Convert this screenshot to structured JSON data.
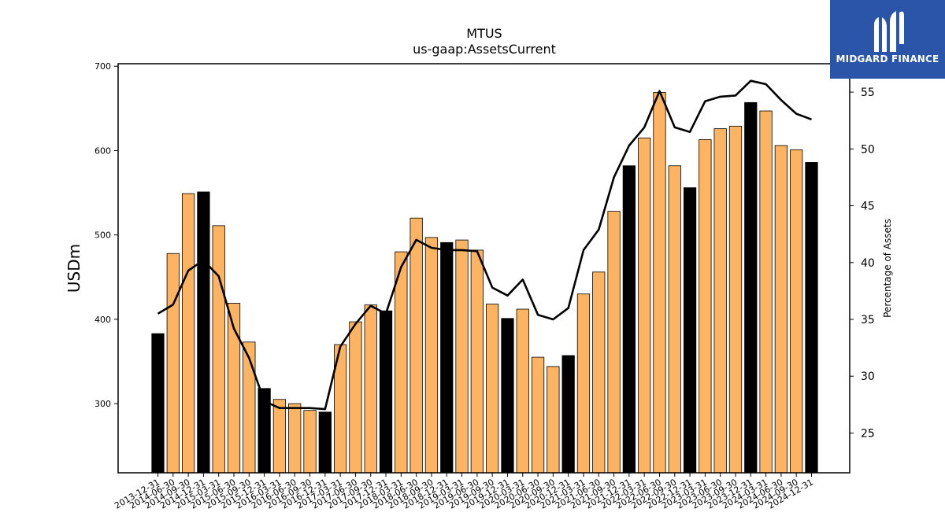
{
  "chart_data": {
    "type": "bar",
    "title": "MTUS",
    "subtitle": "us-gaap:AssetsCurrent",
    "ylabel": "USDm",
    "y2label": "Percentage of Assets",
    "ylim": [
      218,
      703
    ],
    "y2lim": [
      21.5,
      57.5
    ],
    "yticks": [
      300,
      400,
      500,
      600,
      700
    ],
    "y2ticks": [
      25,
      30,
      35,
      40,
      45,
      50,
      55
    ],
    "grid": false,
    "colors": {
      "bar": "#fdb462",
      "bar_highlight": "#000000",
      "line": "#000000",
      "bar_edge": "#000000"
    },
    "categories": [
      "2013-12-31",
      "2014-06-30",
      "2014-09-30",
      "2014-12-31",
      "2015-03-31",
      "2015-06-30",
      "2015-09-30",
      "2015-12-31",
      "2016-03-31",
      "2016-06-30",
      "2016-09-30",
      "2016-12-31",
      "2017-03-31",
      "2017-06-30",
      "2017-09-30",
      "2017-12-31",
      "2018-03-31",
      "2018-06-30",
      "2018-09-30",
      "2018-12-31",
      "2019-03-31",
      "2019-06-30",
      "2019-09-30",
      "2019-12-31",
      "2020-03-31",
      "2020-06-30",
      "2020-09-30",
      "2020-12-31",
      "2021-03-31",
      "2021-06-30",
      "2021-09-30",
      "2021-12-31",
      "2022-03-31",
      "2022-06-30",
      "2022-09-30",
      "2022-12-31",
      "2023-03-31",
      "2023-06-30",
      "2023-09-30",
      "2023-12-31",
      "2024-03-31",
      "2024-06-30",
      "2024-09-30",
      "2024-12-31"
    ],
    "series": [
      {
        "kind": "bar",
        "axis": "left",
        "values": [
          383,
          478,
          549,
          551,
          511,
          419,
          373,
          318,
          305,
          300,
          292,
          290,
          370,
          397,
          417,
          410,
          480,
          520,
          497,
          491,
          494,
          482,
          418,
          401,
          412,
          355,
          344,
          357,
          430,
          456,
          528,
          582,
          615,
          669,
          582,
          556,
          613,
          626,
          629,
          657,
          647,
          606,
          601,
          586
        ],
        "highlight": [
          true,
          false,
          false,
          true,
          false,
          false,
          false,
          true,
          false,
          false,
          false,
          true,
          false,
          false,
          false,
          true,
          false,
          false,
          false,
          true,
          false,
          false,
          false,
          true,
          false,
          false,
          false,
          true,
          false,
          false,
          false,
          true,
          false,
          false,
          false,
          true,
          false,
          false,
          false,
          true,
          false,
          false,
          false,
          true
        ]
      },
      {
        "kind": "line",
        "axis": "right",
        "values": [
          35.5,
          36.3,
          39.3,
          40.2,
          38.8,
          34.2,
          31.6,
          27.8,
          27.2,
          27.2,
          27.2,
          27.1,
          32.6,
          34.6,
          36.2,
          35.5,
          39.6,
          42.0,
          41.3,
          41.1,
          41.1,
          41.0,
          37.8,
          37.1,
          38.5,
          35.4,
          35.0,
          36.0,
          41.1,
          42.9,
          47.5,
          50.3,
          51.9,
          55.1,
          51.9,
          51.5,
          54.2,
          54.6,
          54.7,
          56.0,
          55.7,
          54.3,
          53.1,
          52.6
        ]
      }
    ]
  },
  "logo": {
    "text": "MIDGARD FINANCE"
  }
}
